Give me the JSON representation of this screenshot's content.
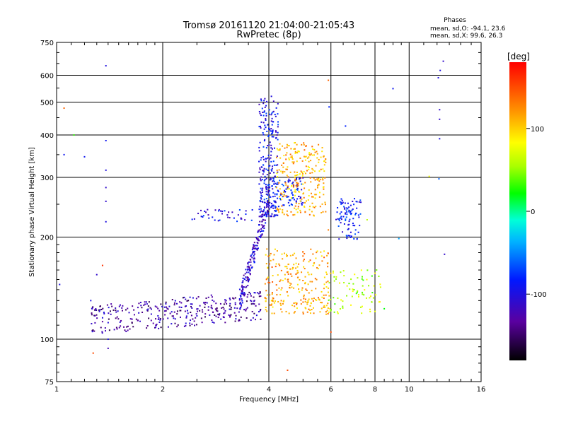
{
  "chart_data": {
    "type": "scatter",
    "title": "Tromsø 20161120 21:04:00-21:05:43",
    "subtitle": "RwPretec (8p)",
    "xlabel": "Frequency [MHz]",
    "ylabel": "Stationary phase Virtual Height [km]",
    "x_scale": "log",
    "y_scale": "log",
    "xlim": [
      1,
      16
    ],
    "ylim": [
      75,
      750
    ],
    "x_ticks": [
      1,
      2,
      4,
      6,
      8,
      10,
      16
    ],
    "x_tick_labels": [
      "1",
      "2",
      "4",
      "6",
      "8",
      "10",
      "16"
    ],
    "y_ticks": [
      75,
      100,
      200,
      300,
      400,
      500,
      600,
      750
    ],
    "y_tick_labels": [
      "75",
      "100",
      "200",
      "300",
      "400",
      "500",
      "600",
      "750"
    ],
    "grid": true,
    "phases_box": {
      "heading": "Phases",
      "o_line": "mean, sd,O: -94.1, 23.6",
      "x_line": "mean, sd,X:  99.6, 26.3"
    },
    "colorbar": {
      "label": "[deg]",
      "range": [
        -180,
        180
      ],
      "ticks": [
        100,
        0,
        -100
      ],
      "tick_labels": [
        "100",
        "0",
        "-100"
      ]
    },
    "color_encodes": "phase",
    "clusters": [
      {
        "name": "E-layer O trace",
        "x_range": [
          1.25,
          3.8
        ],
        "y_range": [
          108,
          150
        ],
        "phase": -130,
        "count": 340
      },
      {
        "name": "F1 rise O",
        "x_range": [
          3.3,
          4.0
        ],
        "y_range": [
          130,
          260
        ],
        "phase": -110,
        "count": 190
      },
      {
        "name": "F2 cusp O",
        "x_range": [
          3.7,
          4.3
        ],
        "y_range": [
          230,
          520
        ],
        "phase": -95,
        "count": 230
      },
      {
        "name": "F2 O trace",
        "x_range": [
          3.9,
          5.0
        ],
        "y_range": [
          245,
          300
        ],
        "phase": -90,
        "count": 110
      },
      {
        "name": "F X-mode",
        "x_range": [
          4.2,
          5.8
        ],
        "y_range": [
          230,
          380
        ],
        "phase": 110,
        "count": 260
      },
      {
        "name": "Lower X-mode",
        "x_range": [
          3.9,
          6.0
        ],
        "y_range": [
          118,
          185
        ],
        "phase": 115,
        "count": 260
      },
      {
        "name": "Spread F at 6-7.5 MHz",
        "x_range": [
          6.2,
          7.3
        ],
        "y_range": [
          195,
          260
        ],
        "phase": -90,
        "count": 90
      },
      {
        "name": "Bottom echoes 6-8 MHz",
        "x_range": [
          5.9,
          8.3
        ],
        "y_range": [
          118,
          160
        ],
        "phase": 60,
        "count": 80
      },
      {
        "name": "Ledge 2.4-3.6 MHz",
        "x_range": [
          2.4,
          3.6
        ],
        "y_range": [
          222,
          242
        ],
        "phase": -95,
        "count": 40
      }
    ],
    "points": [
      [
        1.02,
        145,
        -100
      ],
      [
        1.05,
        480,
        140
      ],
      [
        1.05,
        350,
        -90
      ],
      [
        1.12,
        400,
        30
      ],
      [
        1.2,
        345,
        -90
      ],
      [
        1.25,
        130,
        -100
      ],
      [
        1.3,
        155,
        -110
      ],
      [
        1.38,
        640,
        -100
      ],
      [
        1.38,
        385,
        -90
      ],
      [
        1.38,
        315,
        -100
      ],
      [
        1.38,
        280,
        -110
      ],
      [
        1.38,
        255,
        -110
      ],
      [
        1.38,
        222,
        -100
      ],
      [
        1.4,
        100,
        -100
      ],
      [
        1.4,
        94,
        -120
      ],
      [
        1.27,
        91,
        150
      ],
      [
        1.35,
        165,
        160
      ],
      [
        4.52,
        81,
        150
      ],
      [
        5.9,
        580,
        140
      ],
      [
        5.93,
        484,
        -80
      ],
      [
        6.6,
        425,
        -80
      ],
      [
        9.0,
        548,
        -90
      ],
      [
        9.35,
        198,
        -40
      ],
      [
        11.4,
        302,
        80
      ],
      [
        12.1,
        590,
        -100
      ],
      [
        12.2,
        475,
        -110
      ],
      [
        12.2,
        445,
        -110
      ],
      [
        12.2,
        390,
        -100
      ],
      [
        12.25,
        620,
        -100
      ],
      [
        12.5,
        660,
        -110
      ],
      [
        12.6,
        178,
        -110
      ],
      [
        12.15,
        297,
        -60
      ],
      [
        5.9,
        210,
        130
      ],
      [
        6.0,
        105,
        150
      ],
      [
        7.6,
        225,
        60
      ],
      [
        8.5,
        123,
        20
      ]
    ]
  }
}
